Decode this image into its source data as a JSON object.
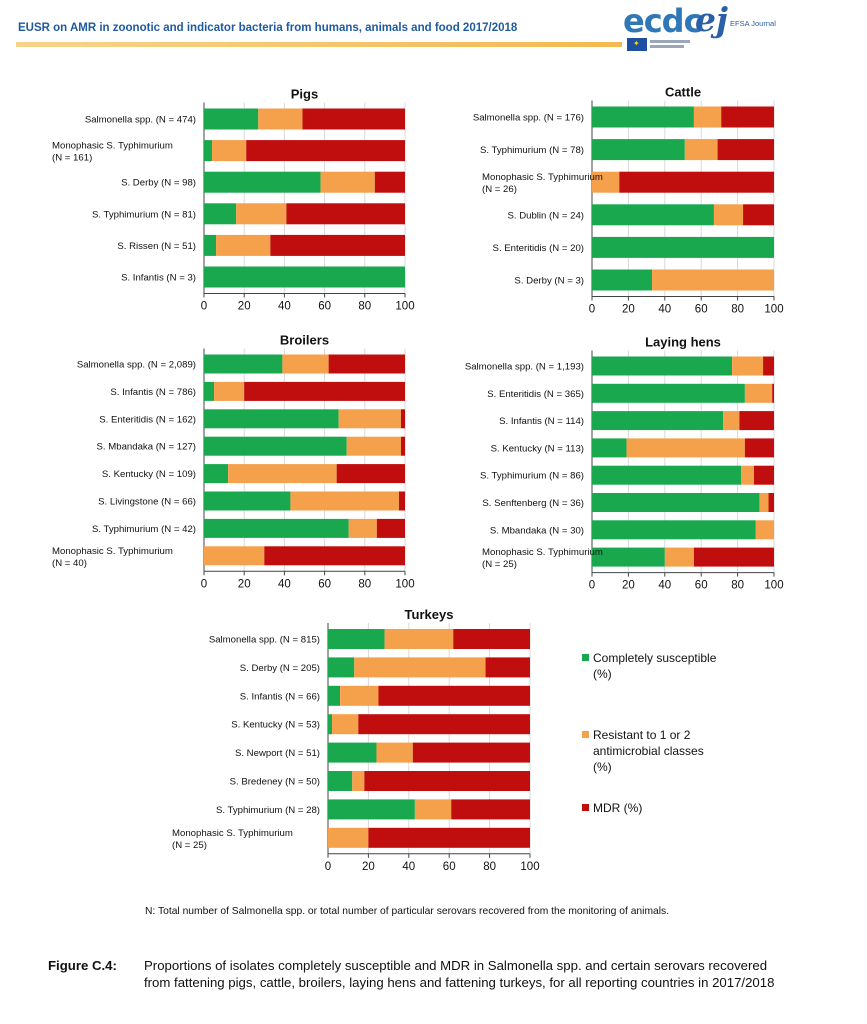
{
  "header": {
    "title": "EUSR on AMR in zoonotic and indicator bacteria from humans, animals and food 2017/2018",
    "logo_ecdc": "ecdc",
    "logo_ej": "ej",
    "logo_efsa": "EFSA Journal"
  },
  "colors": {
    "susceptible": "#1aa84f",
    "resistant": "#f5a04a",
    "mdr": "#c00d0d",
    "gridline": "#d9d9d9"
  },
  "legend": {
    "items": [
      {
        "label": "Completely susceptible (%)",
        "color": "#1aa84f"
      },
      {
        "label": "Resistant to 1 or 2 antimicrobial classes (%)",
        "color": "#f5a04a"
      },
      {
        "label": "MDR (%)",
        "color": "#c00d0d"
      }
    ]
  },
  "chart_data": [
    {
      "type": "bar",
      "orientation": "horizontal",
      "stacked": true,
      "title": "Pigs",
      "categories": [
        "Salmonella spp. (N = 474)",
        "Monophasic S. Typhimurium (N = 161)",
        "S. Derby (N = 98)",
        "S. Typhimurium (N = 81)",
        "S. Rissen (N = 51)",
        "S. Infantis (N = 3)"
      ],
      "series": [
        {
          "name": "Completely susceptible (%)",
          "values": [
            27,
            4,
            58,
            16,
            6,
            100
          ]
        },
        {
          "name": "Resistant to 1 or 2 antimicrobial classes (%)",
          "values": [
            22,
            17,
            27,
            25,
            27,
            0
          ]
        },
        {
          "name": "MDR (%)",
          "values": [
            51,
            79,
            15,
            59,
            67,
            0
          ]
        }
      ],
      "xlim": [
        0,
        100
      ],
      "xticks": [
        0,
        20,
        40,
        60,
        80,
        100
      ]
    },
    {
      "type": "bar",
      "orientation": "horizontal",
      "stacked": true,
      "title": "Cattle",
      "categories": [
        "Salmonella spp. (N = 176)",
        "S. Typhimurium (N = 78)",
        "Monophasic S. Typhimurium (N = 26)",
        "S. Dublin (N = 24)",
        "S. Enteritidis (N = 20)",
        "S. Derby (N = 3)"
      ],
      "series": [
        {
          "name": "Completely susceptible (%)",
          "values": [
            56,
            51,
            0,
            67,
            100,
            33
          ]
        },
        {
          "name": "Resistant to 1 or 2 antimicrobial classes (%)",
          "values": [
            15,
            18,
            15,
            16,
            0,
            67
          ]
        },
        {
          "name": "MDR (%)",
          "values": [
            29,
            31,
            85,
            17,
            0,
            0
          ]
        }
      ],
      "xlim": [
        0,
        100
      ],
      "xticks": [
        0,
        20,
        40,
        60,
        80,
        100
      ]
    },
    {
      "type": "bar",
      "orientation": "horizontal",
      "stacked": true,
      "title": "Broilers",
      "categories": [
        "Salmonella spp. (N = 2,089)",
        "S. Infantis (N = 786)",
        "S. Enteritidis (N = 162)",
        "S. Mbandaka (N = 127)",
        "S. Kentucky (N = 109)",
        "S. Livingstone (N = 66)",
        "S. Typhimurium (N = 42)",
        "Monophasic S. Typhimurium (N = 40)"
      ],
      "series": [
        {
          "name": "Completely susceptible (%)",
          "values": [
            39,
            5,
            67,
            71,
            12,
            43,
            72,
            0
          ]
        },
        {
          "name": "Resistant to 1 or 2 antimicrobial classes (%)",
          "values": [
            23,
            15,
            31,
            27,
            54,
            54,
            14,
            30
          ]
        },
        {
          "name": "MDR (%)",
          "values": [
            38,
            80,
            2,
            2,
            34,
            3,
            14,
            70
          ]
        }
      ],
      "xlim": [
        0,
        100
      ],
      "xticks": [
        0,
        20,
        40,
        60,
        80,
        100
      ]
    },
    {
      "type": "bar",
      "orientation": "horizontal",
      "stacked": true,
      "title": "Laying hens",
      "categories": [
        "Salmonella spp. (N = 1,193)",
        "S. Enteritidis (N = 365)",
        "S. Infantis (N = 114)",
        "S. Kentucky (N = 113)",
        "S. Typhimurium (N = 86)",
        "S. Senftenberg (N = 36)",
        "S. Mbandaka (N = 30)",
        "Monophasic S. Typhimurium (N = 25)"
      ],
      "series": [
        {
          "name": "Completely susceptible (%)",
          "values": [
            77,
            84,
            72,
            19,
            82,
            92,
            90,
            40
          ]
        },
        {
          "name": "Resistant to 1 or 2 antimicrobial classes (%)",
          "values": [
            17,
            15,
            9,
            65,
            7,
            5,
            10,
            16
          ]
        },
        {
          "name": "MDR (%)",
          "values": [
            6,
            1,
            19,
            16,
            11,
            3,
            0,
            44
          ]
        }
      ],
      "xlim": [
        0,
        100
      ],
      "xticks": [
        0,
        20,
        40,
        60,
        80,
        100
      ]
    },
    {
      "type": "bar",
      "orientation": "horizontal",
      "stacked": true,
      "title": "Turkeys",
      "categories": [
        "Salmonella spp. (N = 815)",
        "S. Derby (N = 205)",
        "S. Infantis (N = 66)",
        "S. Kentucky (N = 53)",
        "S. Newport (N = 51)",
        "S. Bredeney (N = 50)",
        "S. Typhimurium (N = 28)",
        "Monophasic S. Typhimurium (N = 25)"
      ],
      "series": [
        {
          "name": "Completely susceptible (%)",
          "values": [
            28,
            13,
            6,
            2,
            24,
            12,
            43,
            0
          ]
        },
        {
          "name": "Resistant to 1 or 2 antimicrobial classes (%)",
          "values": [
            34,
            65,
            19,
            13,
            18,
            6,
            18,
            20
          ]
        },
        {
          "name": "MDR (%)",
          "values": [
            38,
            22,
            75,
            85,
            58,
            82,
            39,
            80
          ]
        }
      ],
      "xlim": [
        0,
        100
      ],
      "xticks": [
        0,
        20,
        40,
        60,
        80,
        100
      ]
    }
  ],
  "footnote": "N: Total number of Salmonella spp. or total number of particular serovars recovered from the monitoring of animals.",
  "caption": {
    "label": "Figure C.4:",
    "text": "Proportions of isolates completely susceptible and MDR in Salmonella spp. and certain serovars recovered from fattening pigs, cattle, broilers, laying hens and fattening turkeys, for all reporting countries in 2017/2018"
  }
}
